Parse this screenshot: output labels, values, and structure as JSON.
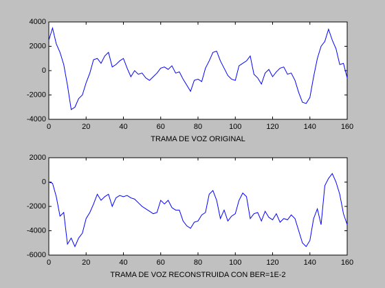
{
  "chart_data": [
    {
      "type": "line",
      "xlabel": "TRAMA DE VOZ ORIGINAL",
      "x": [
        0,
        2,
        4,
        6,
        8,
        10,
        12,
        14,
        16,
        18,
        20,
        22,
        24,
        26,
        28,
        30,
        32,
        34,
        36,
        38,
        40,
        42,
        44,
        46,
        48,
        50,
        52,
        54,
        56,
        58,
        60,
        62,
        64,
        66,
        68,
        70,
        72,
        74,
        76,
        78,
        80,
        82,
        84,
        86,
        88,
        90,
        92,
        94,
        96,
        98,
        100,
        102,
        104,
        106,
        108,
        110,
        112,
        114,
        116,
        118,
        120,
        122,
        124,
        126,
        128,
        130,
        132,
        134,
        136,
        138,
        140,
        142,
        144,
        146,
        148,
        150,
        152,
        154,
        156,
        158,
        160
      ],
      "series": [
        {
          "color": "#0000ff",
          "values": [
            2500,
            3500,
            2200,
            1500,
            500,
            -1200,
            -3200,
            -3000,
            -2300,
            -2000,
            -1000,
            -200,
            900,
            1000,
            600,
            1200,
            1500,
            300,
            500,
            800,
            1000,
            200,
            -500,
            0,
            -300,
            -200,
            -600,
            -800,
            -500,
            -200,
            200,
            300,
            100,
            400,
            -200,
            -100,
            -700,
            -1200,
            -1700,
            -800,
            -700,
            -900,
            200,
            800,
            1500,
            1600,
            800,
            200,
            -400,
            -700,
            -800,
            400,
            600,
            800,
            1200,
            -300,
            -600,
            -1100,
            -200,
            100,
            -500,
            -100,
            200,
            300,
            -300,
            -200,
            -800,
            -1800,
            -2600,
            -2700,
            -2200,
            -500,
            1000,
            2000,
            2400,
            3400,
            2500,
            1800,
            500,
            600,
            -600
          ]
        }
      ],
      "xlim": [
        0,
        160
      ],
      "xticks": [
        0,
        20,
        40,
        60,
        80,
        100,
        120,
        140,
        160
      ],
      "ylim": [
        -4000,
        4000
      ],
      "yticks": [
        -4000,
        -2000,
        0,
        2000,
        4000
      ]
    },
    {
      "type": "line",
      "xlabel": "TRAMA DE VOZ RECONSTRUIDA CON BER=1E-2",
      "x": [
        0,
        2,
        4,
        6,
        8,
        10,
        12,
        14,
        16,
        18,
        20,
        22,
        24,
        26,
        28,
        30,
        32,
        34,
        36,
        38,
        40,
        42,
        44,
        46,
        48,
        50,
        52,
        54,
        56,
        58,
        60,
        62,
        64,
        66,
        68,
        70,
        72,
        74,
        76,
        78,
        80,
        82,
        84,
        86,
        88,
        90,
        92,
        94,
        96,
        98,
        100,
        102,
        104,
        106,
        108,
        110,
        112,
        114,
        116,
        118,
        120,
        122,
        124,
        126,
        128,
        130,
        132,
        134,
        136,
        138,
        140,
        142,
        144,
        146,
        148,
        150,
        152,
        154,
        156,
        158,
        160
      ],
      "series": [
        {
          "color": "#0000ff",
          "values": [
            0,
            -100,
            -1200,
            -2800,
            -2500,
            -5100,
            -4600,
            -5300,
            -4600,
            -4200,
            -3000,
            -2500,
            -1800,
            -1000,
            -1500,
            -1200,
            -1000,
            -2000,
            -1300,
            -1100,
            -1200,
            -1100,
            -1300,
            -1400,
            -1700,
            -2000,
            -2200,
            -2400,
            -2600,
            -2500,
            -1500,
            -1800,
            -1500,
            -2100,
            -2300,
            -2300,
            -3200,
            -3600,
            -3800,
            -3300,
            -3200,
            -2700,
            -2500,
            -1000,
            -700,
            -1500,
            -3000,
            -2300,
            -3200,
            -2800,
            -2600,
            -1500,
            -900,
            -1200,
            -3000,
            -2600,
            -2500,
            -3200,
            -2400,
            -2900,
            -3100,
            -2600,
            -3300,
            -3000,
            -3100,
            -2700,
            -3000,
            -4000,
            -5000,
            -5300,
            -4800,
            -3000,
            -2200,
            -3500,
            -300,
            300,
            700,
            0,
            -1000,
            -2600,
            -3500
          ]
        }
      ],
      "xlim": [
        0,
        160
      ],
      "xticks": [
        0,
        20,
        40,
        60,
        80,
        100,
        120,
        140,
        160
      ],
      "ylim": [
        -6000,
        2000
      ],
      "yticks": [
        -6000,
        -4000,
        -2000,
        0,
        2000
      ]
    }
  ]
}
